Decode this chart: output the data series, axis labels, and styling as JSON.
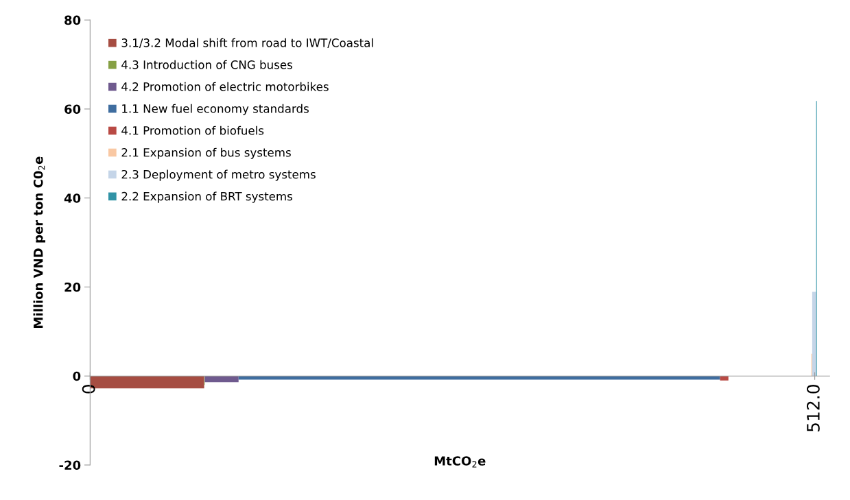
{
  "chart_data": {
    "type": "area",
    "xlabel": "MtCO$_{2}$e",
    "ylabel": "Million VND per ton C0$_{2}$e",
    "xlim": [
      0,
      522.5
    ],
    "xticks": [
      {
        "value": 0,
        "label": "0"
      },
      {
        "value": 512,
        "label": "512.0"
      }
    ],
    "ylim": [
      -20,
      80
    ],
    "yticks": [
      -20,
      0,
      20,
      40,
      60,
      80
    ],
    "grid": false,
    "legend": "top left",
    "series": [
      {
        "name": "3.1/3.2 Modal shift from road to IWT/Coastal",
        "color": "#a64d42",
        "x": [
          0,
          80.6
        ],
        "values": [
          -2.8,
          -2.8
        ]
      },
      {
        "name": "4.3 Introduction of CNG buses",
        "color": "#86a044",
        "x": [
          80.6,
          81.0
        ],
        "values": [
          -2.0,
          -2.0
        ]
      },
      {
        "name": "4.2 Promotion of electric motorbikes",
        "color": "#6f5a8e",
        "x": [
          81.0,
          104.9
        ],
        "values": [
          -1.4,
          -1.4
        ]
      },
      {
        "name": "1.1 New fuel economy standards",
        "color": "#3f6d9f",
        "x": [
          104.9,
          445.1
        ],
        "values": [
          -0.8,
          -0.8
        ]
      },
      {
        "name": "4.1 Promotion of biofuels",
        "color": "#b94a44",
        "x": [
          445.1,
          451.0
        ],
        "values": [
          -1.0,
          -1.0
        ]
      },
      {
        "name": "2.1 Expansion of bus systems",
        "color": "#f9c8a3",
        "x": [
          509.6,
          510.2
        ],
        "values": [
          5,
          5
        ]
      },
      {
        "name": "2.3 Deployment of metro systems",
        "color": "#c5d5e8",
        "x": [
          510.2,
          513.0
        ],
        "values": [
          18.9,
          18.9
        ]
      },
      {
        "name": "2.2 Expansion of BRT systems",
        "color": "#3193a6",
        "x": [
          513.0,
          513.5
        ],
        "values": [
          61.8,
          61.8
        ]
      }
    ]
  }
}
